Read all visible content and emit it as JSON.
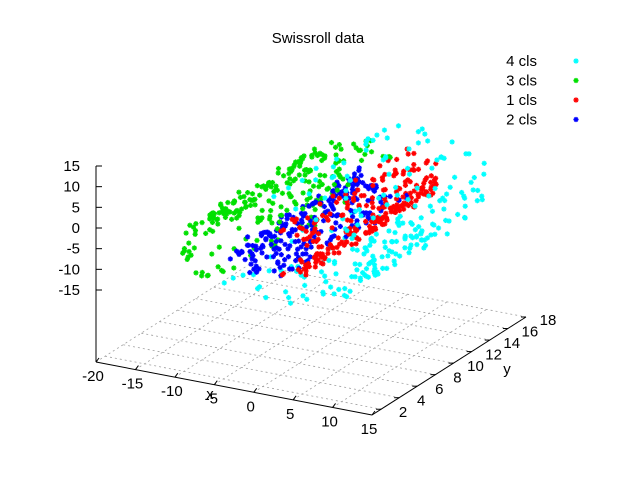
{
  "chart_data": {
    "type": "scatter",
    "title": "Swissroll data",
    "xlabel": "x",
    "ylabel": "y",
    "zlabel": "",
    "xlim": [
      -20,
      15
    ],
    "ylim": [
      1,
      18
    ],
    "zlim": [
      -15,
      15
    ],
    "xticks": [
      "-20",
      "-15",
      "-10",
      "-5",
      "0",
      "5",
      "10",
      "15"
    ],
    "yticks": [
      "2",
      "4",
      "6",
      "8",
      "10",
      "12",
      "14",
      "16",
      "18"
    ],
    "zticks": [
      "15",
      "10",
      "5",
      "0",
      "-5",
      "-10",
      "-15"
    ],
    "legend_position": "top-right",
    "grid": true,
    "series": [
      {
        "name": "4 cls",
        "color": "#00ffff",
        "t_range": [
          10.5,
          14.1
        ],
        "count": 240
      },
      {
        "name": "3 cls",
        "color": "#00e000",
        "t_range": [
          7.5,
          10.5
        ],
        "count": 240
      },
      {
        "name": "1 cls",
        "color": "#ff0000",
        "t_range": [
          5.3,
          7.5
        ],
        "count": 240
      },
      {
        "name": "2 cls",
        "color": "#0000ff",
        "t_range": [
          3.2,
          5.3
        ],
        "count": 240
      }
    ],
    "point_generator": {
      "curve": "x = t*cos(t), z = t*sin(t), y random in ylim",
      "legend_order": [
        "4 cls",
        "3 cls",
        "1 cls",
        "2 cls"
      ]
    }
  }
}
